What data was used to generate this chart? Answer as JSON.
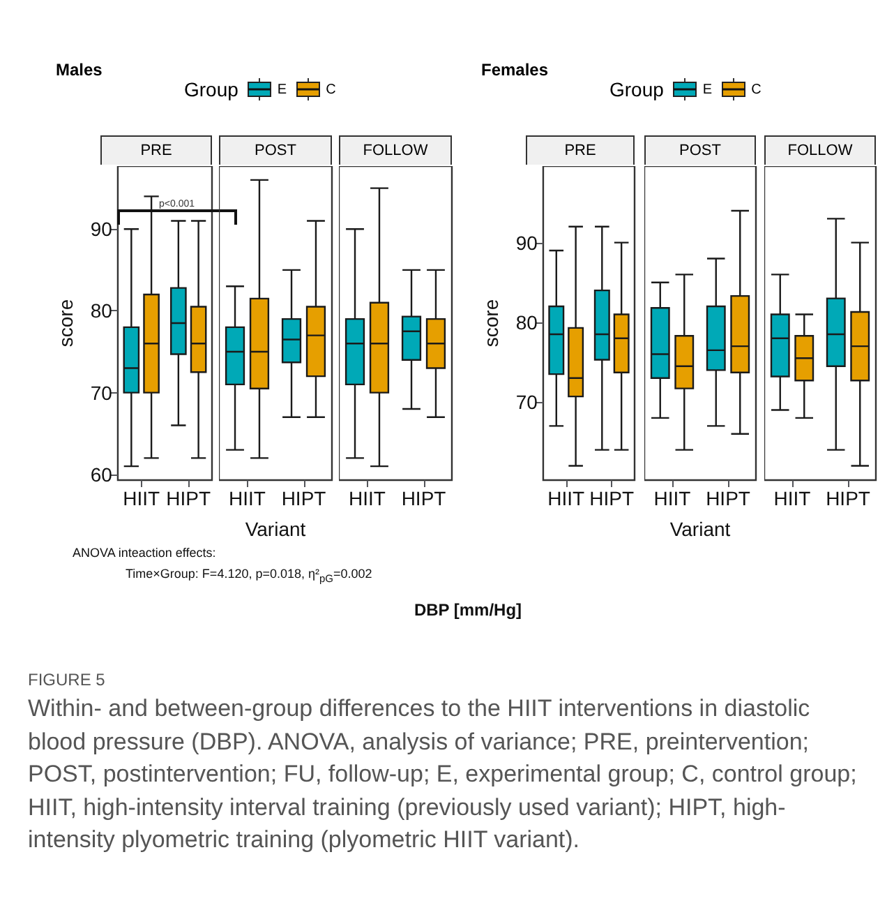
{
  "chart_data": [
    {
      "type": "box",
      "title": "Males",
      "subtitle": "PRE",
      "legend_title": "Group",
      "legend": "top",
      "ylabel": "score",
      "categories": [
        "HIIT",
        "HIPT"
      ],
      "ylim": [
        59.3,
        97.7
      ],
      "yticks": [
        60,
        70,
        80,
        90
      ],
      "annotations": [
        "p<0.001"
      ],
      "series": [
        {
          "name": "E",
          "color": "#00a9b7",
          "boxes": [
            {
              "low": 61,
              "q1": 70,
              "median": 73,
              "q3": 78,
              "high": 90
            },
            {
              "low": 66,
              "q1": 74.7,
              "median": 78.5,
              "q3": 82.8,
              "high": 91
            }
          ]
        },
        {
          "name": "C",
          "color": "#e69f00",
          "boxes": [
            {
              "low": 62,
              "q1": 70,
              "median": 76,
              "q3": 82,
              "high": 94
            },
            {
              "low": 62,
              "q1": 72.5,
              "median": 76,
              "q3": 80.5,
              "high": 91
            }
          ]
        }
      ]
    },
    {
      "type": "box",
      "subtitle": "POST",
      "xlabel": "Variant",
      "tick_labels": "x",
      "categories": [
        "HIIT",
        "HIPT"
      ],
      "ylim": [
        59.3,
        97.7
      ],
      "yticks": [
        60,
        70,
        80,
        90
      ],
      "series": [
        {
          "color": "#00a9b7",
          "boxes": [
            {
              "low": 63,
              "q1": 71,
              "median": 75,
              "q3": 78,
              "high": 83
            },
            {
              "low": 67,
              "q1": 73.7,
              "median": 76.5,
              "q3": 79,
              "high": 85
            }
          ]
        },
        {
          "color": "#e69f00",
          "boxes": [
            {
              "low": 62,
              "q1": 70.5,
              "median": 75,
              "q3": 81.5,
              "high": 96
            },
            {
              "low": 67,
              "q1": 72,
              "median": 77,
              "q3": 80.5,
              "high": 91
            }
          ]
        }
      ]
    },
    {
      "type": "box",
      "subtitle": "FOLLOW",
      "tick_labels": "x",
      "categories": [
        "HIIT",
        "HIPT"
      ],
      "ylim": [
        59.3,
        97.7
      ],
      "yticks": [
        60,
        70,
        80,
        90
      ],
      "series": [
        {
          "color": "#00a9b7",
          "boxes": [
            {
              "low": 62,
              "q1": 71,
              "median": 76,
              "q3": 79,
              "high": 90
            },
            {
              "low": 68,
              "q1": 74,
              "median": 77.5,
              "q3": 79.3,
              "high": 85
            }
          ]
        },
        {
          "color": "#e69f00",
          "boxes": [
            {
              "low": 61,
              "q1": 70,
              "median": 76,
              "q3": 81,
              "high": 95
            },
            {
              "low": 67,
              "q1": 73,
              "median": 76,
              "q3": 79,
              "high": 85
            }
          ]
        }
      ]
    },
    {
      "type": "box",
      "title": "Females",
      "subtitle": "PRE",
      "legend_title": "Group",
      "legend": "top",
      "ylabel": "score",
      "categories": [
        "HIIT",
        "HIPT"
      ],
      "ylim": [
        60.2,
        99.6
      ],
      "yticks": [
        70,
        80,
        90
      ],
      "series": [
        {
          "name": "E",
          "color": "#00a9b7",
          "boxes": [
            {
              "low": 67,
              "q1": 73.5,
              "median": 78.5,
              "q3": 82,
              "high": 89
            },
            {
              "low": 64,
              "q1": 75.3,
              "median": 78.5,
              "q3": 84,
              "high": 92
            }
          ]
        },
        {
          "name": "C",
          "color": "#e69f00",
          "boxes": [
            {
              "low": 62,
              "q1": 70.7,
              "median": 73,
              "q3": 79.3,
              "high": 92
            },
            {
              "low": 64,
              "q1": 73.7,
              "median": 78,
              "q3": 81,
              "high": 90
            }
          ]
        }
      ]
    },
    {
      "type": "box",
      "subtitle": "POST",
      "xlabel": "Variant",
      "tick_labels": "x",
      "categories": [
        "HIIT",
        "HIPT"
      ],
      "ylim": [
        60.2,
        99.6
      ],
      "yticks": [
        70,
        80,
        90
      ],
      "series": [
        {
          "color": "#00a9b7",
          "boxes": [
            {
              "low": 68,
              "q1": 73,
              "median": 76,
              "q3": 81.8,
              "high": 85
            },
            {
              "low": 67,
              "q1": 74,
              "median": 76.5,
              "q3": 82,
              "high": 88
            }
          ]
        },
        {
          "color": "#e69f00",
          "boxes": [
            {
              "low": 64,
              "q1": 71.7,
              "median": 74.5,
              "q3": 78.3,
              "high": 86
            },
            {
              "low": 66,
              "q1": 73.7,
              "median": 77,
              "q3": 83.3,
              "high": 94
            }
          ]
        }
      ]
    },
    {
      "type": "box",
      "subtitle": "FOLLOW",
      "tick_labels": "x",
      "categories": [
        "HIIT",
        "HIPT"
      ],
      "ylim": [
        60.2,
        99.6
      ],
      "yticks": [
        70,
        80,
        90
      ],
      "series": [
        {
          "color": "#00a9b7",
          "boxes": [
            {
              "low": 69,
              "q1": 73.2,
              "median": 78,
              "q3": 81,
              "high": 86
            },
            {
              "low": 64,
              "q1": 74.5,
              "median": 78.5,
              "q3": 83,
              "high": 93
            }
          ]
        },
        {
          "color": "#e69f00",
          "boxes": [
            {
              "low": 68,
              "q1": 72.7,
              "median": 75.5,
              "q3": 78.3,
              "high": 81
            },
            {
              "low": 62,
              "q1": 72.7,
              "median": 77,
              "q3": 81.3,
              "high": 90
            }
          ]
        }
      ]
    },
    {
      "type": "other",
      "annotations": [
        "ANOVA inteaction effects:",
        "Time×Group: F=4.120, p=0.018, η²$_{pG}$=0.002",
        "DBP [mm/Hg]",
        "FIGURE 5",
        "Within- and between-group differences to the HIIT interventions in diastolic blood pressure (DBP). ANOVA, analysis of variance; PRE, preintervention; POST, postintervention; FU, follow-up; E, experimental group; C, control group; HIIT, high-intensity interval training (previously used variant); HIPT, high-intensity plyometric training (plyometric HIIT variant)."
      ]
    }
  ]
}
